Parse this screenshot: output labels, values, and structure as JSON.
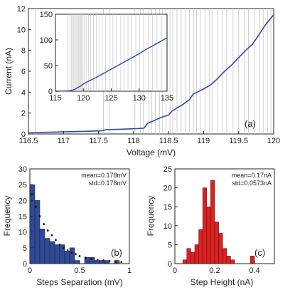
{
  "colors": {
    "line": "#2f4a99",
    "steps": "#c4c4c4",
    "bar_blue": "#2f4a99",
    "bar_red": "#e02020",
    "axis": "#222222"
  },
  "chart_data": [
    {
      "id": "a",
      "type": "line",
      "panel_label": "(a)",
      "xlabel": "Voltage (mV)",
      "ylabel": "Current (nA)",
      "xlim": [
        116.5,
        120
      ],
      "ylim": [
        0,
        12
      ],
      "xticks": [
        "116.5",
        "117",
        "117.5",
        "118",
        "118.5",
        "119",
        "119.5",
        "120"
      ],
      "yticks": [
        "0",
        "2",
        "4",
        "6",
        "8",
        "10",
        "12"
      ],
      "series": [
        {
          "x": [
            116.5,
            116.7,
            117.0,
            117.3,
            117.55,
            117.6,
            117.8,
            118.0,
            118.15,
            118.2,
            118.4,
            118.5,
            118.55,
            118.7,
            118.8,
            118.85,
            119.0,
            119.1,
            119.2,
            119.3,
            119.4,
            119.5,
            119.6,
            119.7,
            119.8,
            119.9,
            120.0
          ],
          "y": [
            0.1,
            0.15,
            0.2,
            0.25,
            0.3,
            0.4,
            0.45,
            0.5,
            0.55,
            1.0,
            1.6,
            1.8,
            2.2,
            2.8,
            3.3,
            3.8,
            4.3,
            4.7,
            5.3,
            6.0,
            6.6,
            7.3,
            8.0,
            8.6,
            9.6,
            10.6,
            11.4
          ]
        }
      ],
      "step_lines_x": [
        116.6,
        117.57,
        117.65,
        118.02,
        118.1,
        118.14,
        118.22,
        118.26,
        118.31,
        118.37,
        118.41,
        118.46,
        118.52,
        118.56,
        118.62,
        118.68,
        118.74,
        118.8,
        118.86,
        118.9,
        118.95,
        119.02,
        119.08,
        119.12,
        119.2,
        119.27,
        119.33,
        119.42,
        119.5,
        119.58,
        119.64,
        119.72,
        119.8,
        119.85,
        119.91,
        119.96
      ],
      "inset": {
        "xlim": [
          115,
          135
        ],
        "ylim": [
          0,
          150
        ],
        "xticks": [
          "115",
          "120",
          "125",
          "130",
          "135"
        ],
        "yticks": [
          "0",
          "50",
          "100",
          "150"
        ],
        "series": [
          {
            "x": [
              115,
              116,
              117,
              117.5,
              118,
              118.5,
              119,
              119.5,
              120,
              121,
              122,
              123,
              124,
              125,
              126,
              127,
              128,
              129,
              130,
              131,
              132,
              133,
              134,
              135
            ],
            "y": [
              0,
              0.2,
              0.5,
              1,
              2,
              4,
              7,
              10,
              14,
              20,
              25,
              31,
              37,
              43,
              49,
              55,
              61,
              67,
              73,
              80,
              86,
              92,
              98,
              104
            ]
          }
        ],
        "step_lines_x": [
          117.2,
          117.6,
          117.9,
          118.1,
          118.3,
          118.5,
          118.7,
          118.9,
          119.1,
          119.3,
          119.5,
          119.7,
          119.9,
          120.2,
          120.5,
          120.9,
          121.3,
          121.8,
          122.3,
          122.8,
          123.4,
          124.0,
          124.7,
          125.3,
          126.0,
          126.7,
          127.3,
          128.0,
          128.7,
          129.4,
          130.1,
          130.8,
          131.6,
          132.4,
          133.2,
          134.0
        ]
      }
    },
    {
      "id": "b",
      "type": "bar",
      "panel_label": "(b)",
      "xlabel": "Steps Separation (mV)",
      "ylabel": "Frequency",
      "annotation_mean": "mean=0.178mV",
      "annotation_std": "std=0.178mV",
      "xlim": [
        0,
        1
      ],
      "ylim": [
        0,
        30
      ],
      "xticks": [
        "0",
        "0.5",
        "1"
      ],
      "yticks": [
        "0",
        "5",
        "10",
        "15",
        "20",
        "25",
        "30"
      ],
      "bin_edges": [
        0,
        0.05,
        0.1,
        0.15,
        0.2,
        0.25,
        0.3,
        0.35,
        0.4,
        0.45,
        0.5,
        0.55,
        0.6,
        0.65,
        0.7,
        0.75,
        0.8,
        0.85,
        0.9
      ],
      "values": [
        25,
        20,
        11,
        8,
        7,
        6,
        6,
        4,
        5,
        1,
        0,
        2,
        2,
        1,
        1,
        1,
        0,
        1
      ],
      "fit_x": [
        0.02,
        0.06,
        0.1,
        0.14,
        0.18,
        0.22,
        0.26,
        0.3,
        0.34,
        0.38,
        0.42,
        0.46,
        0.5,
        0.56,
        0.62,
        0.68,
        0.74,
        0.8,
        0.86,
        0.92
      ],
      "fit_y": [
        22,
        18,
        15,
        12.5,
        10.5,
        9,
        7.5,
        6,
        5,
        4.2,
        3.5,
        3,
        2.4,
        1.9,
        1.5,
        1.2,
        1,
        0.8,
        0.6,
        0.5
      ]
    },
    {
      "id": "c",
      "type": "bar",
      "panel_label": "(c)",
      "xlabel": "Step Height (nA)",
      "ylabel": "Frequency",
      "annotation_mean": "mean=0.17nA",
      "annotation_std": "std=0.0573nA",
      "xlim": [
        0,
        0.5
      ],
      "ylim": [
        0,
        25
      ],
      "xticks": [
        "0",
        "0.2",
        "0.4"
      ],
      "yticks": [
        "0",
        "5",
        "10",
        "15",
        "20",
        "25"
      ],
      "bin_edges": [
        0.04,
        0.06,
        0.08,
        0.1,
        0.12,
        0.14,
        0.16,
        0.18,
        0.2,
        0.22,
        0.24,
        0.26,
        0.28,
        0.3,
        0.32,
        0.34,
        0.36,
        0.38,
        0.4
      ],
      "values": [
        1,
        4,
        3,
        5,
        9,
        20,
        15,
        22,
        11,
        8,
        4,
        2,
        1,
        0,
        0,
        0,
        0,
        2
      ]
    }
  ]
}
